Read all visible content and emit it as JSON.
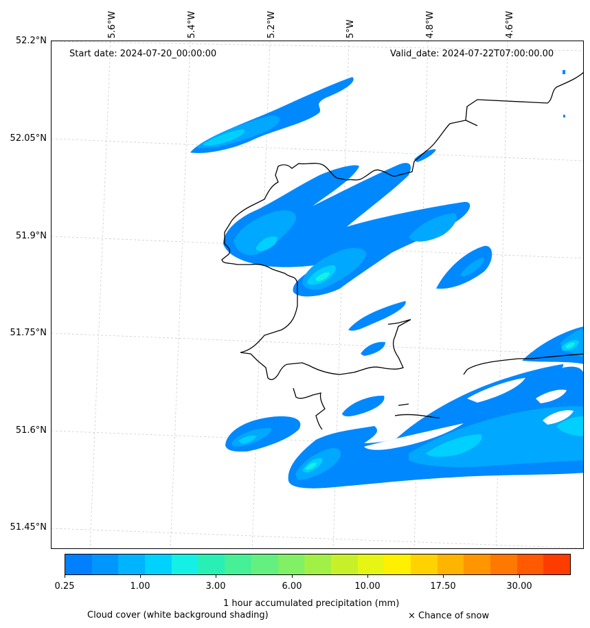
{
  "map": {
    "start_date": "Start date: 2024-07-20_00:00:00",
    "valid_date": "Valid_date: 2024-07-22T07:00:00.00",
    "lon_labels": [
      "5.6°W",
      "5.4°W",
      "5.2°W",
      "5°W",
      "4.8°W",
      "4.6°W"
    ],
    "lat_labels": [
      "52.2°N",
      "52.05°N",
      "51.9°N",
      "51.75°N",
      "51.6°N",
      "51.45°N"
    ],
    "gridlines": "dashed light grey"
  },
  "colorbar": {
    "label": "1 hour accumulated precipitation (mm)",
    "tick_labels": [
      "0.25",
      "1.00",
      "3.00",
      "6.00",
      "10.00",
      "17.50",
      "30.00"
    ],
    "colors": [
      "#0080ff",
      "#0096ff",
      "#00b4ff",
      "#00d2ff",
      "#14f0e6",
      "#28f0b4",
      "#46f096",
      "#64f080",
      "#82f064",
      "#a0f046",
      "#c8f028",
      "#e6f514",
      "#fff000",
      "#ffd200",
      "#ffb400",
      "#ff9600",
      "#ff7800",
      "#ff5a00",
      "#ff3c00"
    ]
  },
  "footer": {
    "cloud_cover": "Cloud cover (white background shading)",
    "snow": "× Chance of snow"
  }
}
